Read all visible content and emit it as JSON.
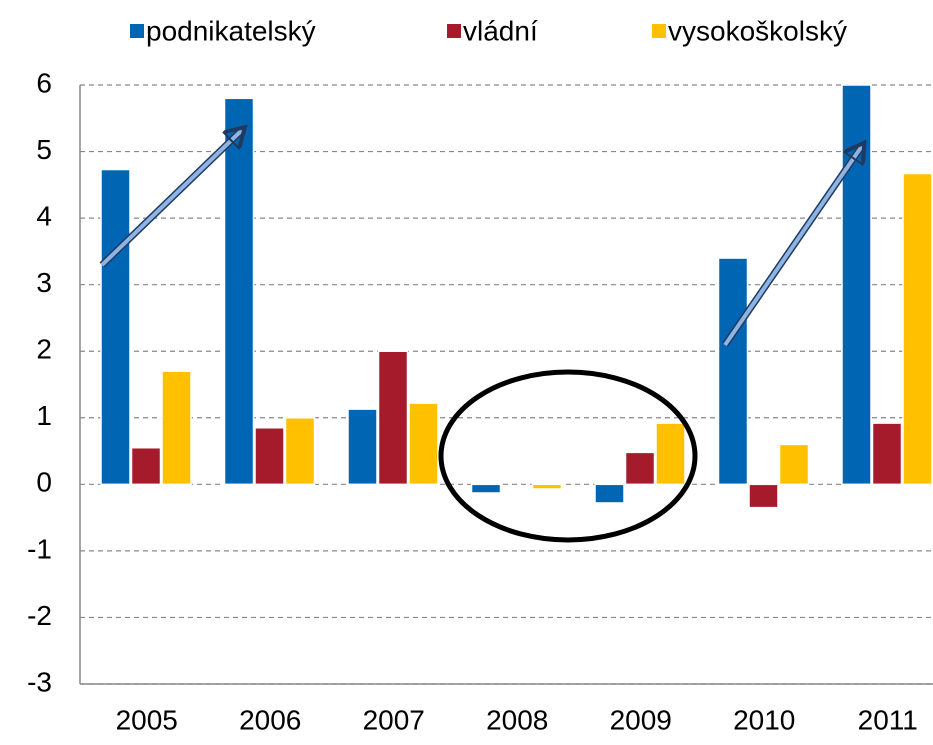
{
  "chart_data": {
    "type": "bar",
    "categories": [
      "2005",
      "2006",
      "2007",
      "2008",
      "2009",
      "2010",
      "2011"
    ],
    "series": [
      {
        "name": "podnikatelský",
        "color": "#0066b3",
        "values": [
          4.73,
          5.8,
          1.13,
          -0.13,
          -0.28,
          3.4,
          6.0
        ]
      },
      {
        "name": "vládní",
        "color": "#a51b2c",
        "values": [
          0.55,
          0.85,
          2.0,
          0,
          0.48,
          -0.35,
          0.92
        ]
      },
      {
        "name": "vysokoškolský",
        "color": "#ffc000",
        "values": [
          1.7,
          1.0,
          1.22,
          -0.07,
          0.92,
          0.6,
          4.67
        ]
      }
    ],
    "ylim": [
      -3,
      6
    ],
    "yticks": [
      -3,
      -2,
      -1,
      0,
      1,
      2,
      3,
      4,
      5,
      6
    ],
    "grid": true,
    "legend": "top"
  }
}
